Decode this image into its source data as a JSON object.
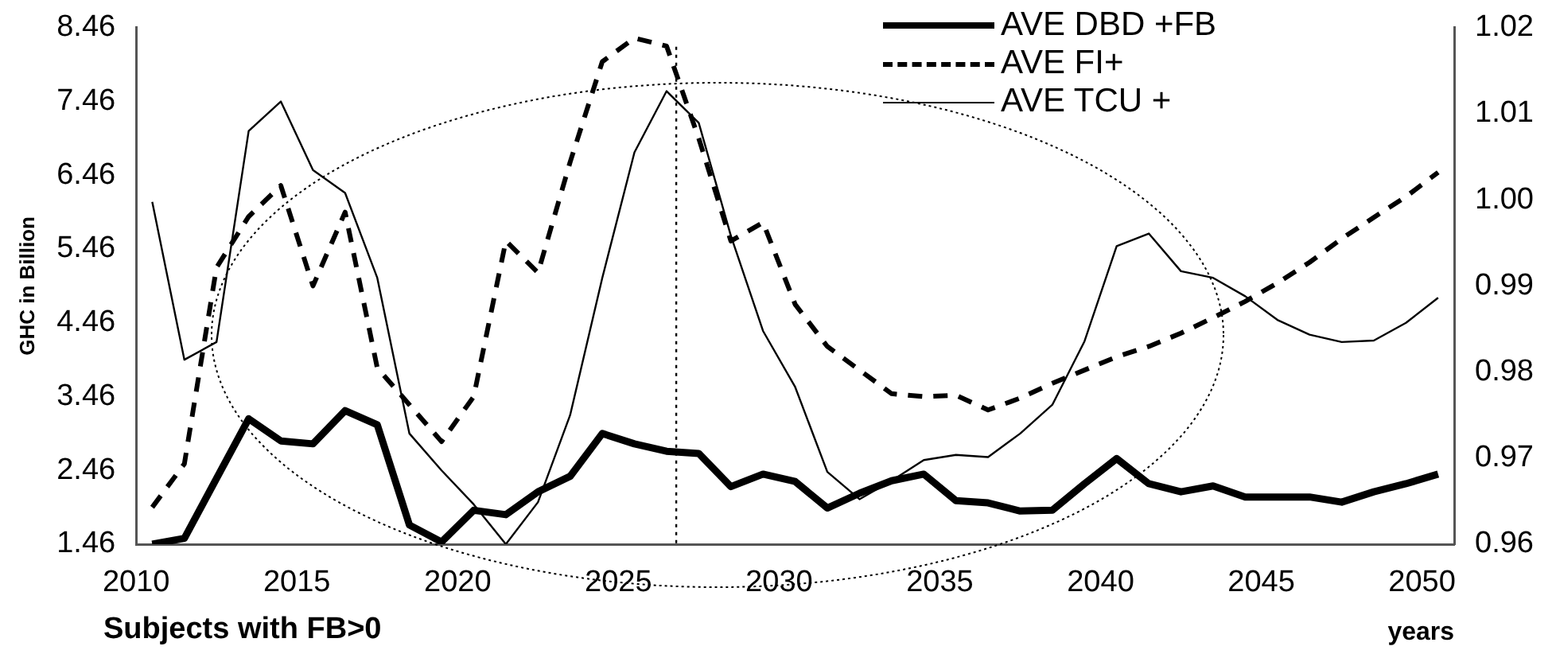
{
  "chart_data": {
    "type": "line",
    "ylabel": "GHC in Billion",
    "xlabel": "years",
    "annotations": [
      "Subjects with FB>0"
    ],
    "x": [
      2010.5,
      2011.5,
      2012.5,
      2013.5,
      2014.5,
      2015.5,
      2016.5,
      2017.5,
      2018.5,
      2019.5,
      2020.5,
      2021.5,
      2022.5,
      2023.5,
      2024.5,
      2025.5,
      2026.5,
      2027.5,
      2028.5,
      2029.5,
      2030.5,
      2031.5,
      2032.5,
      2033.5,
      2034.5,
      2035.5,
      2036.5,
      2037.5,
      2038.5,
      2039.5,
      2040.5,
      2041.5,
      2042.5,
      2043.5,
      2044.5,
      2045.5,
      2046.5,
      2047.5,
      2048.5,
      2049.5,
      2050.5
    ],
    "series": [
      {
        "name": "AVE DBD +FB",
        "color": "#000000",
        "line_style": "solid",
        "values": [
          1.46,
          1.54,
          2.35,
          3.16,
          2.86,
          2.82,
          3.27,
          3.08,
          1.72,
          1.49,
          1.92,
          1.86,
          2.17,
          2.38,
          2.96,
          2.82,
          2.72,
          2.69,
          2.24,
          2.41,
          2.31,
          1.95,
          2.15,
          2.32,
          2.41,
          2.05,
          2.02,
          1.91,
          1.92,
          2.28,
          2.62,
          2.28,
          2.17,
          2.25,
          2.1,
          2.1,
          2.1,
          2.03,
          2.17,
          2.28,
          2.41
        ]
      },
      {
        "name": "AVE FI+",
        "color": "#000000",
        "line_style": "dashed",
        "values": [
          1.96,
          2.55,
          5.21,
          5.9,
          6.32,
          4.96,
          5.96,
          3.85,
          3.35,
          2.85,
          3.46,
          5.57,
          5.14,
          6.64,
          8.0,
          8.32,
          8.21,
          6.96,
          5.57,
          5.82,
          4.71,
          4.14,
          3.82,
          3.5,
          3.46,
          3.48,
          3.28,
          3.44,
          3.64,
          3.82,
          4.0,
          4.14,
          4.32,
          4.53,
          4.75,
          5.0,
          5.28,
          5.6,
          5.89,
          6.17,
          6.5
        ]
      },
      {
        "name": "AVE TCU +",
        "color": "#000000",
        "line_style": "solid",
        "values": [
          6.1,
          3.96,
          4.2,
          7.06,
          7.46,
          6.53,
          6.22,
          5.07,
          2.96,
          2.46,
          2.0,
          1.46,
          2.03,
          3.21,
          5.07,
          6.77,
          7.6,
          7.17,
          5.64,
          4.35,
          3.59,
          2.44,
          2.07,
          2.32,
          2.6,
          2.67,
          2.64,
          2.96,
          3.35,
          4.21,
          5.5,
          5.67,
          5.16,
          5.07,
          4.82,
          4.5,
          4.3,
          4.2,
          4.22,
          4.46,
          4.8
        ]
      }
    ],
    "xlim": [
      2010,
      2051
    ],
    "xticks": [
      2010,
      2015,
      2020,
      2025,
      2030,
      2035,
      2040,
      2045,
      2050
    ],
    "ylim": [
      1.46,
      8.46
    ],
    "yticks": [
      1.46,
      2.46,
      3.46,
      4.46,
      5.46,
      6.46,
      7.46,
      8.46
    ],
    "y2lim": [
      0.96,
      1.02
    ],
    "y2ticks": [
      0.96,
      0.97,
      0.98,
      0.99,
      {
        "value": 1,
        "label": "1.00"
      },
      1.01,
      1.02
    ],
    "ref_lines": [
      {
        "axis": "x",
        "value": 2026.8,
        "line_style": "dotted",
        "color": "#000000"
      }
    ],
    "grid": false,
    "legend": "top right",
    "marker": "none"
  }
}
